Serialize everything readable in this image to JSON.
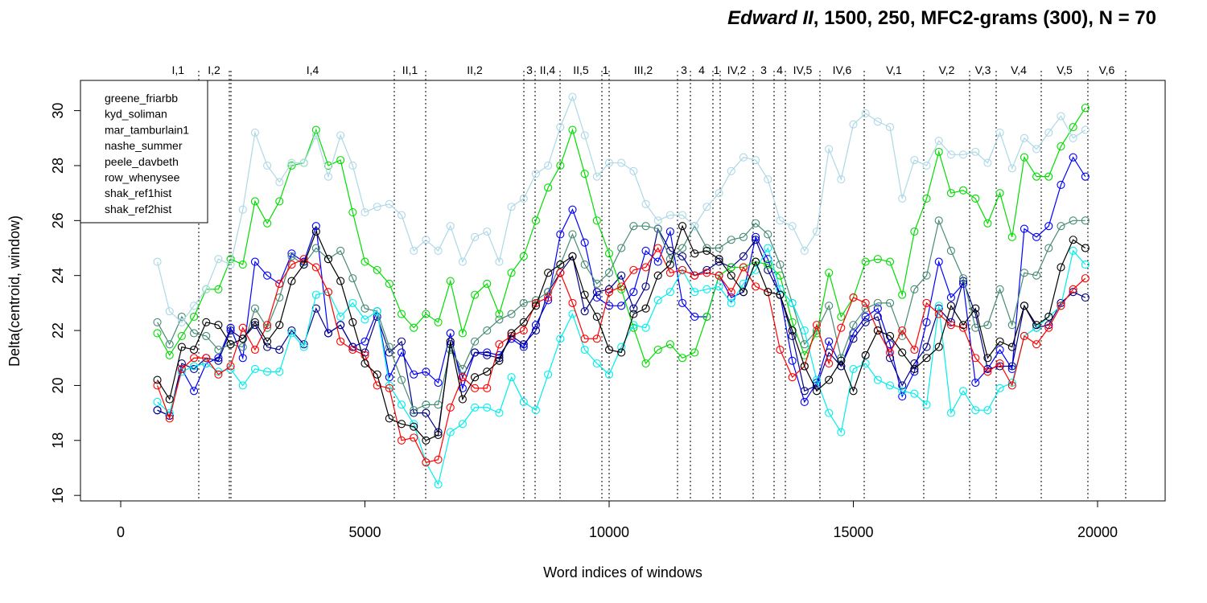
{
  "chart_data": {
    "type": "line",
    "title_italic": "Edward II",
    "title": ", 1500, 250, MFC2-grams (300), N = 70",
    "xlabel": "Word indices of windows",
    "ylabel": "Delta(centroid, window)",
    "legend": "top-left",
    "xlim": [
      -824,
      21384
    ],
    "xticks": [
      0,
      5000,
      10000,
      15000,
      20000
    ],
    "ylim": [
      15.8,
      31.1
    ],
    "yticks": [
      16,
      18,
      20,
      22,
      24,
      26,
      28,
      30
    ],
    "x": [
      750,
      1000,
      1250,
      1500,
      1750,
      2000,
      2250,
      2500,
      2750,
      3000,
      3250,
      3500,
      3750,
      4000,
      4250,
      4500,
      4750,
      5000,
      5250,
      5500,
      5750,
      6000,
      6250,
      6500,
      6750,
      7000,
      7250,
      7500,
      7750,
      8000,
      8250,
      8500,
      8750,
      9000,
      9250,
      9500,
      9750,
      10000,
      10250,
      10500,
      10750,
      11000,
      11250,
      11500,
      11750,
      12000,
      12250,
      12500,
      12750,
      13000,
      13250,
      13500,
      13750,
      14000,
      14250,
      14500,
      14750,
      15000,
      15250,
      15500,
      15750,
      16000,
      16250,
      16500,
      16750,
      17000,
      17250,
      17500,
      17750,
      18000,
      18250,
      18500,
      18750,
      19000,
      19250,
      19500,
      19750
    ],
    "series": [
      {
        "name": "greene_friarbb",
        "color": "#0000ff",
        "values": [
          19.1,
          18.9,
          20.6,
          19.8,
          20.8,
          21.0,
          22.1,
          21.0,
          24.5,
          24.0,
          23.7,
          24.8,
          24.5,
          25.8,
          21.9,
          22.2,
          21.4,
          21.6,
          22.7,
          20.3,
          21.2,
          20.4,
          20.5,
          20.1,
          21.9,
          19.9,
          21.2,
          21.2,
          21.1,
          21.7,
          21.4,
          22.2,
          23.1,
          25.5,
          26.4,
          25.2,
          23.2,
          22.9,
          22.9,
          23.4,
          24.9,
          24.5,
          25.6,
          23.0,
          22.5,
          22.5,
          24.0,
          23.2,
          23.4,
          25.4,
          24.6,
          23.3,
          20.9,
          19.4,
          20.1,
          21.6,
          20.7,
          21.9,
          22.5,
          22.8,
          21.5,
          19.6,
          20.5,
          22.3,
          24.5,
          23.2,
          23.7,
          20.1,
          20.6,
          21.3,
          20.6,
          25.7,
          25.4,
          25.8,
          27.3,
          28.3,
          27.6
        ]
      },
      {
        "name": "kyd_soliman",
        "color": "#00008b",
        "values": [
          19.1,
          18.9,
          20.8,
          20.6,
          21.0,
          20.9,
          22.0,
          21.7,
          22.2,
          21.4,
          21.3,
          22.0,
          21.5,
          22.8,
          21.9,
          22.2,
          21.4,
          21.2,
          22.5,
          21.2,
          21.6,
          19.0,
          19.0,
          18.3,
          21.5,
          20.3,
          21.2,
          21.1,
          21.0,
          21.8,
          21.5,
          22.0,
          23.4,
          24.1,
          24.7,
          22.7,
          23.4,
          23.5,
          24.0,
          22.8,
          23.6,
          25.7,
          24.9,
          24.7,
          24.0,
          24.2,
          24.5,
          24.3,
          24.7,
          25.3,
          24.2,
          23.3,
          21.8,
          19.8,
          20.0,
          21.2,
          20.7,
          21.7,
          22.3,
          22.5,
          21.0,
          20.0,
          20.8,
          21.4,
          22.8,
          22.3,
          23.8,
          22.6,
          20.6,
          20.7,
          20.7,
          22.9,
          22.1,
          22.2,
          23.0,
          23.4,
          23.2
        ]
      },
      {
        "name": "mar_tamburlain1",
        "color": "#00dd00",
        "values": [
          21.9,
          21.1,
          21.8,
          22.5,
          23.5,
          23.5,
          24.6,
          24.4,
          26.7,
          25.9,
          26.7,
          28.0,
          28.1,
          29.3,
          28.0,
          28.2,
          26.3,
          24.5,
          24.2,
          23.7,
          22.6,
          22.1,
          22.6,
          22.3,
          23.8,
          21.9,
          23.3,
          23.7,
          22.6,
          24.1,
          24.7,
          26.0,
          27.2,
          28.0,
          29.3,
          27.7,
          26.0,
          24.8,
          23.5,
          22.1,
          20.8,
          21.3,
          21.5,
          21.0,
          21.2,
          22.5,
          24.0,
          24.3,
          24.3,
          24.5,
          24.4,
          24.0,
          22.3,
          21.1,
          21.9,
          24.1,
          22.5,
          23.2,
          24.5,
          24.6,
          24.5,
          23.3,
          25.6,
          26.8,
          28.5,
          27.0,
          27.1,
          26.8,
          25.9,
          27.0,
          25.4,
          28.3,
          27.6,
          27.6,
          28.7,
          29.4,
          30.1
        ]
      },
      {
        "name": "nashe_summer",
        "color": "#458b74",
        "values": [
          22.3,
          21.5,
          22.5,
          21.9,
          21.8,
          21.3,
          21.5,
          21.4,
          22.8,
          22.1,
          23.2,
          24.7,
          24.4,
          25.0,
          24.6,
          24.9,
          23.9,
          22.8,
          22.7,
          21.4,
          20.2,
          19.1,
          19.3,
          19.3,
          21.3,
          20.6,
          21.6,
          22.0,
          22.4,
          22.6,
          23.0,
          23.1,
          23.4,
          24.4,
          25.5,
          24.4,
          23.7,
          24.1,
          25.0,
          25.8,
          25.8,
          25.7,
          24.6,
          25.0,
          25.8,
          25.0,
          25.0,
          25.3,
          25.4,
          25.9,
          25.5,
          24.4,
          23.0,
          21.5,
          22.0,
          22.9,
          21.0,
          22.2,
          22.8,
          23.0,
          23.0,
          21.8,
          23.5,
          24.0,
          26.0,
          24.9,
          23.9,
          22.1,
          22.2,
          23.5,
          22.2,
          24.1,
          24.0,
          25.0,
          25.8,
          26.0,
          26.0
        ]
      },
      {
        "name": "peele_davbeth",
        "color": "#add8e6",
        "values": [
          24.5,
          22.7,
          22.3,
          22.9,
          23.5,
          24.6,
          24.4,
          26.4,
          29.2,
          28.0,
          27.4,
          28.1,
          28.1,
          29.1,
          27.6,
          29.1,
          28.0,
          26.3,
          26.5,
          26.6,
          26.2,
          24.9,
          25.3,
          24.9,
          25.8,
          24.5,
          25.4,
          25.6,
          24.5,
          26.5,
          26.8,
          27.7,
          28.0,
          29.4,
          30.5,
          29.1,
          27.6,
          28.1,
          28.1,
          27.8,
          26.6,
          26.0,
          26.2,
          26.2,
          25.8,
          26.5,
          27.0,
          27.8,
          28.3,
          28.2,
          27.5,
          26.0,
          25.8,
          24.9,
          25.6,
          28.6,
          27.5,
          29.5,
          29.9,
          29.6,
          29.4,
          26.8,
          28.2,
          28.0,
          28.9,
          28.4,
          28.4,
          28.5,
          28.1,
          29.2,
          27.9,
          29.0,
          28.6,
          29.2,
          29.8,
          29.0,
          29.3
        ]
      },
      {
        "name": "row_whenysee",
        "color": "#00eeee",
        "values": [
          19.4,
          19.0,
          20.5,
          20.7,
          20.8,
          20.5,
          20.6,
          20.0,
          20.6,
          20.5,
          20.5,
          21.9,
          21.4,
          23.3,
          23.4,
          22.5,
          23.0,
          22.4,
          22.7,
          20.0,
          19.3,
          18.6,
          17.2,
          16.4,
          18.3,
          18.6,
          19.2,
          19.2,
          19.0,
          20.3,
          19.4,
          19.1,
          20.4,
          21.7,
          22.6,
          21.3,
          20.8,
          20.4,
          21.4,
          22.2,
          22.1,
          23.1,
          23.4,
          24.2,
          23.4,
          23.5,
          23.6,
          23.0,
          23.7,
          24.2,
          25.0,
          23.5,
          23.0,
          22.0,
          20.2,
          19.0,
          18.3,
          20.6,
          20.8,
          20.2,
          20.0,
          19.8,
          19.7,
          19.3,
          22.9,
          19.0,
          19.8,
          19.1,
          19.1,
          19.9,
          20.1,
          21.8,
          22.1,
          22.5,
          22.9,
          24.9,
          24.4
        ]
      },
      {
        "name": "shak_ref1hist",
        "color": "#ff0000",
        "values": [
          20.0,
          18.8,
          20.6,
          21.0,
          21.0,
          20.4,
          20.7,
          22.1,
          21.3,
          22.2,
          23.7,
          24.4,
          24.6,
          24.3,
          23.4,
          21.6,
          21.3,
          21.1,
          20.0,
          19.9,
          18.0,
          18.1,
          17.2,
          17.3,
          19.2,
          20.3,
          19.9,
          19.9,
          21.5,
          21.8,
          22.0,
          23.0,
          23.2,
          24.1,
          23.0,
          21.7,
          21.7,
          23.4,
          23.6,
          24.2,
          24.3,
          25.0,
          24.1,
          24.2,
          24.0,
          24.1,
          24.0,
          23.4,
          24.3,
          23.6,
          23.4,
          21.3,
          20.3,
          20.7,
          22.2,
          20.8,
          22.1,
          23.2,
          23.0,
          22.0,
          21.2,
          22.0,
          21.3,
          23.0,
          22.6,
          22.2,
          22.1,
          21.0,
          20.5,
          20.8,
          20.0,
          21.8,
          21.5,
          22.1,
          22.9,
          23.5,
          23.9
        ]
      },
      {
        "name": "shak_ref2hist",
        "color": "#000000",
        "values": [
          20.2,
          19.5,
          21.4,
          21.3,
          22.3,
          22.2,
          21.5,
          21.7,
          22.3,
          21.6,
          22.2,
          23.8,
          24.4,
          25.6,
          24.6,
          23.8,
          22.3,
          20.8,
          20.4,
          18.8,
          18.6,
          18.5,
          18.0,
          18.2,
          21.6,
          19.5,
          20.3,
          20.5,
          20.9,
          21.9,
          22.3,
          22.9,
          24.1,
          24.4,
          24.7,
          23.3,
          22.5,
          21.3,
          21.2,
          22.6,
          22.8,
          24.0,
          24.4,
          25.8,
          24.8,
          24.9,
          24.6,
          24.0,
          23.4,
          24.5,
          23.4,
          23.3,
          22.0,
          20.7,
          19.8,
          20.2,
          20.9,
          19.8,
          21.1,
          22.0,
          21.8,
          21.2,
          20.6,
          21.0,
          21.4,
          22.9,
          22.2,
          22.8,
          21.0,
          21.6,
          21.4,
          22.9,
          22.2,
          22.5,
          24.3,
          25.3,
          25.0
        ]
      }
    ],
    "scenes": [
      {
        "label": "I,1",
        "start": 750,
        "end": 1598
      },
      {
        "label": "I,2",
        "start": 1598,
        "end": 2224
      },
      {
        "label": "I,4",
        "start": 2257,
        "end": 5601
      },
      {
        "label": "II,1",
        "start": 5601,
        "end": 6244
      },
      {
        "label": "II,2",
        "start": 6244,
        "end": 8254
      },
      {
        "label": "3",
        "start": 8254,
        "end": 8484
      },
      {
        "label": "II,4",
        "start": 8484,
        "end": 8995
      },
      {
        "label": "II,5",
        "start": 8995,
        "end": 9852
      },
      {
        "label": "1",
        "start": 9852,
        "end": 10000
      },
      {
        "label": "III,2",
        "start": 10000,
        "end": 11400
      },
      {
        "label": "3",
        "start": 11400,
        "end": 11664
      },
      {
        "label": "4",
        "start": 11664,
        "end": 12125
      },
      {
        "label": "1",
        "start": 12125,
        "end": 12273
      },
      {
        "label": "IV,2",
        "start": 12273,
        "end": 12949
      },
      {
        "label": "3",
        "start": 12949,
        "end": 13377
      },
      {
        "label": "4",
        "start": 13377,
        "end": 13608
      },
      {
        "label": "IV,5",
        "start": 13608,
        "end": 14316
      },
      {
        "label": "IV,6",
        "start": 14316,
        "end": 15222
      },
      {
        "label": "V,1",
        "start": 15222,
        "end": 16441
      },
      {
        "label": "V,2",
        "start": 16441,
        "end": 17381
      },
      {
        "label": "V,3",
        "start": 17381,
        "end": 17924
      },
      {
        "label": "V,4",
        "start": 17924,
        "end": 18847
      },
      {
        "label": "V,5",
        "start": 18847,
        "end": 19802
      },
      {
        "label": "V,6",
        "start": 19802,
        "end": 20576
      }
    ]
  }
}
